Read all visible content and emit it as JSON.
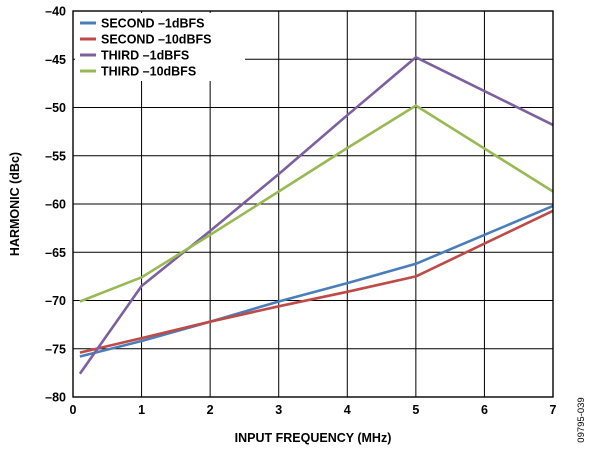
{
  "chart_data": {
    "type": "line",
    "xlabel": "INPUT FREQUENCY (MHz)",
    "ylabel": "HARMONIC (dBc)",
    "xlim": [
      0,
      7
    ],
    "ylim": [
      -80,
      -40
    ],
    "xticks": [
      0,
      1,
      2,
      3,
      4,
      5,
      6,
      7
    ],
    "yticks": [
      -40,
      -45,
      -50,
      -55,
      -60,
      -65,
      -70,
      -75,
      -80
    ],
    "grid": true,
    "legend": "top-left",
    "x": [
      0.1,
      1,
      2,
      3,
      4,
      5,
      7
    ],
    "series": [
      {
        "name": "SECOND –1dBFS",
        "color": "#4a7ebb",
        "values": [
          -75.8,
          -74.2,
          -72.2,
          -70.1,
          -68.2,
          -66.2,
          -60.2
        ]
      },
      {
        "name": "SECOND –10dBFS",
        "color": "#be4b48",
        "values": [
          -75.4,
          -73.9,
          -72.2,
          -70.6,
          -69.1,
          -67.5,
          -60.7
        ]
      },
      {
        "name": "THIRD –1dBFS",
        "color": "#7d5fa0",
        "values": [
          -77.6,
          -68.5,
          -62.8,
          -56.9,
          -50.8,
          -44.8,
          -51.8
        ]
      },
      {
        "name": "THIRD –10dBFS",
        "color": "#98b954",
        "values": [
          -70.1,
          -67.6,
          -63.2,
          -58.7,
          -54.2,
          -49.8,
          -58.7
        ]
      }
    ]
  },
  "figure_id": "09795-039"
}
